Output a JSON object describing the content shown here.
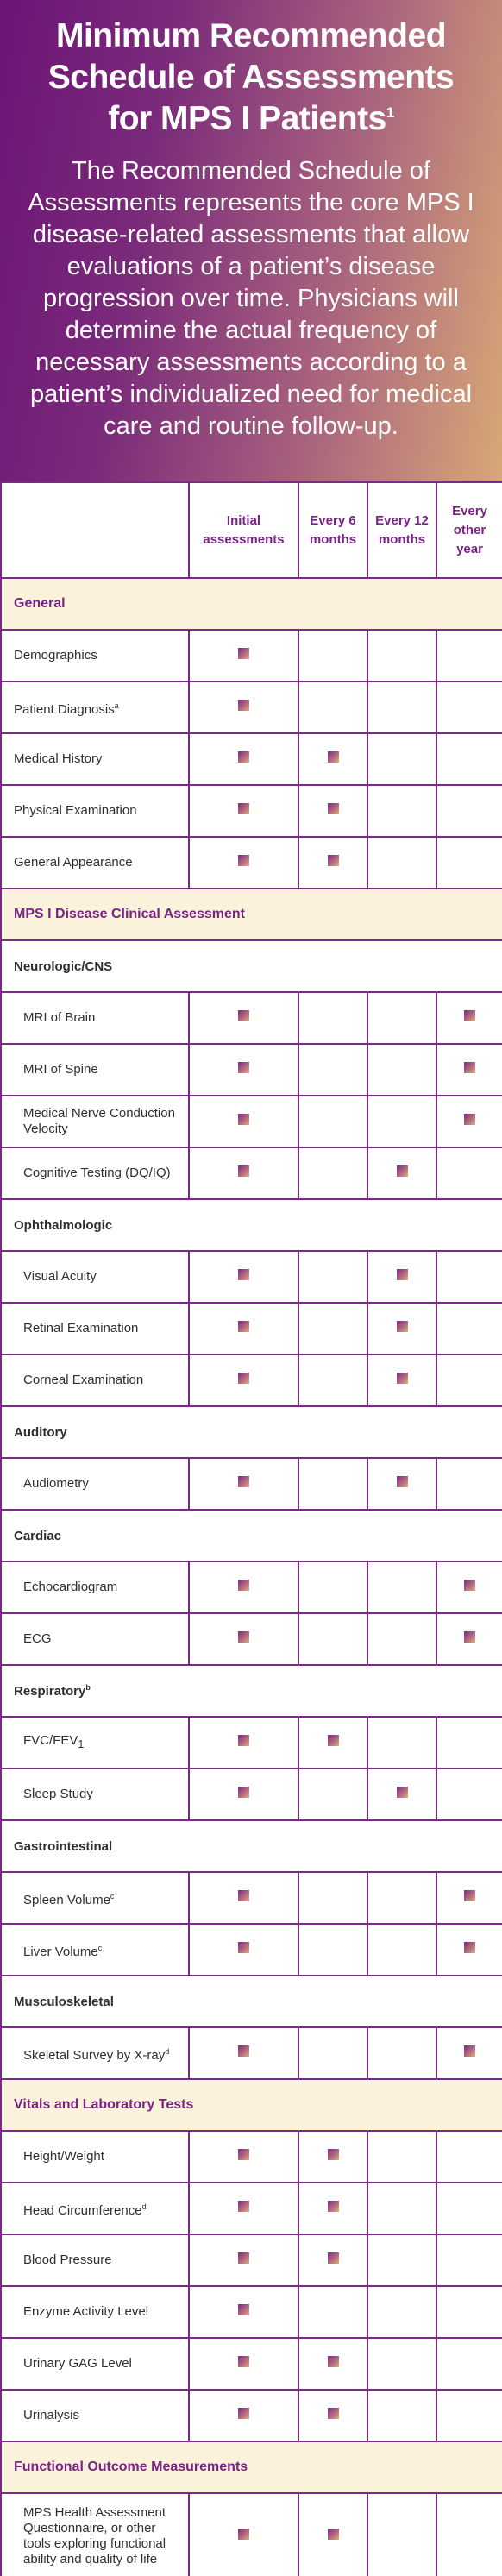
{
  "header": {
    "title_line1": "Minimum Recommended",
    "title_line2": "Schedule of Assessments",
    "title_line3": "for MPS I Patients",
    "title_sup": "1",
    "description": "The Recommended Schedule of Assessments represents the core MPS I disease-related assessments that allow evaluations of a patient’s disease progression over time. Physicians will determine the actual frequency of necessary assessments according to a patient’s individualized need for medical care and routine follow-up."
  },
  "columns": [
    "Initial assessments",
    "Every 6 months",
    "Every 12 months",
    "Every other year"
  ],
  "rows": [
    {
      "type": "section",
      "label": "General"
    },
    {
      "type": "row",
      "label": "Demographics",
      "marks": [
        true,
        false,
        false,
        false
      ]
    },
    {
      "type": "row",
      "label": "Patient Diagnosis",
      "sup": "a",
      "marks": [
        true,
        false,
        false,
        false
      ]
    },
    {
      "type": "row",
      "label": "Medical History",
      "marks": [
        true,
        true,
        false,
        false
      ]
    },
    {
      "type": "row",
      "label": "Physical Examination",
      "marks": [
        true,
        true,
        false,
        false
      ]
    },
    {
      "type": "row",
      "label": "General Appearance",
      "marks": [
        true,
        true,
        false,
        false
      ]
    },
    {
      "type": "section",
      "label": "MPS I Disease Clinical Assessment"
    },
    {
      "type": "subsection",
      "label": "Neurologic/CNS"
    },
    {
      "type": "row",
      "indent": true,
      "label": "MRI of Brain",
      "marks": [
        true,
        false,
        false,
        true
      ]
    },
    {
      "type": "row",
      "indent": true,
      "label": "MRI of Spine",
      "marks": [
        true,
        false,
        false,
        true
      ]
    },
    {
      "type": "row",
      "indent": true,
      "label": "Medical Nerve Conduction Velocity",
      "marks": [
        true,
        false,
        false,
        true
      ]
    },
    {
      "type": "row",
      "indent": true,
      "label": "Cognitive Testing (DQ/IQ)",
      "marks": [
        true,
        false,
        true,
        false
      ]
    },
    {
      "type": "subsection",
      "label": "Ophthalmologic"
    },
    {
      "type": "row",
      "indent": true,
      "label": "Visual Acuity",
      "marks": [
        true,
        false,
        true,
        false
      ]
    },
    {
      "type": "row",
      "indent": true,
      "label": "Retinal Examination",
      "marks": [
        true,
        false,
        true,
        false
      ]
    },
    {
      "type": "row",
      "indent": true,
      "label": "Corneal Examination",
      "marks": [
        true,
        false,
        true,
        false
      ]
    },
    {
      "type": "subsection",
      "label": "Auditory"
    },
    {
      "type": "row",
      "indent": true,
      "label": "Audiometry",
      "marks": [
        true,
        false,
        true,
        false
      ]
    },
    {
      "type": "subsection",
      "label": "Cardiac"
    },
    {
      "type": "row",
      "indent": true,
      "label": "Echocardiogram",
      "marks": [
        true,
        false,
        false,
        true
      ]
    },
    {
      "type": "row",
      "indent": true,
      "label": "ECG",
      "marks": [
        true,
        false,
        false,
        true
      ]
    },
    {
      "type": "subsection",
      "label": "Respiratory",
      "sup": "b"
    },
    {
      "type": "row",
      "indent": true,
      "label": "FVC/FEV",
      "sub": "1",
      "marks": [
        true,
        true,
        false,
        false
      ]
    },
    {
      "type": "row",
      "indent": true,
      "label": "Sleep Study",
      "marks": [
        true,
        false,
        true,
        false
      ]
    },
    {
      "type": "subsection",
      "label": "Gastrointestinal"
    },
    {
      "type": "row",
      "indent": true,
      "label": "Spleen Volume",
      "sup": "c",
      "marks": [
        true,
        false,
        false,
        true
      ]
    },
    {
      "type": "row",
      "indent": true,
      "label": "Liver Volume",
      "sup": "c",
      "marks": [
        true,
        false,
        false,
        true
      ]
    },
    {
      "type": "subsection",
      "label": "Musculoskeletal"
    },
    {
      "type": "row",
      "indent": true,
      "label": "Skeletal Survey by X-ray",
      "sup": "d",
      "marks": [
        true,
        false,
        false,
        true
      ]
    },
    {
      "type": "section",
      "label": "Vitals and Laboratory Tests"
    },
    {
      "type": "row",
      "indent": true,
      "label": "Height/Weight",
      "marks": [
        true,
        true,
        false,
        false
      ]
    },
    {
      "type": "row",
      "indent": true,
      "label": "Head Circumference",
      "sup": "d",
      "marks": [
        true,
        true,
        false,
        false
      ]
    },
    {
      "type": "row",
      "indent": true,
      "label": "Blood Pressure",
      "marks": [
        true,
        true,
        false,
        false
      ]
    },
    {
      "type": "row",
      "indent": true,
      "label": "Enzyme Activity Level",
      "marks": [
        true,
        false,
        false,
        false
      ]
    },
    {
      "type": "row",
      "indent": true,
      "label": "Urinary GAG Level",
      "marks": [
        true,
        true,
        false,
        false
      ]
    },
    {
      "type": "row",
      "indent": true,
      "label": "Urinalysis",
      "marks": [
        true,
        true,
        false,
        false
      ]
    },
    {
      "type": "section",
      "label": "Functional Outcome Measurements"
    },
    {
      "type": "row",
      "indent": true,
      "tall": true,
      "label": "MPS Health Assessment Questionnaire, or other tools exploring functional ability and quality of life",
      "marks": [
        true,
        true,
        false,
        false
      ]
    }
  ]
}
